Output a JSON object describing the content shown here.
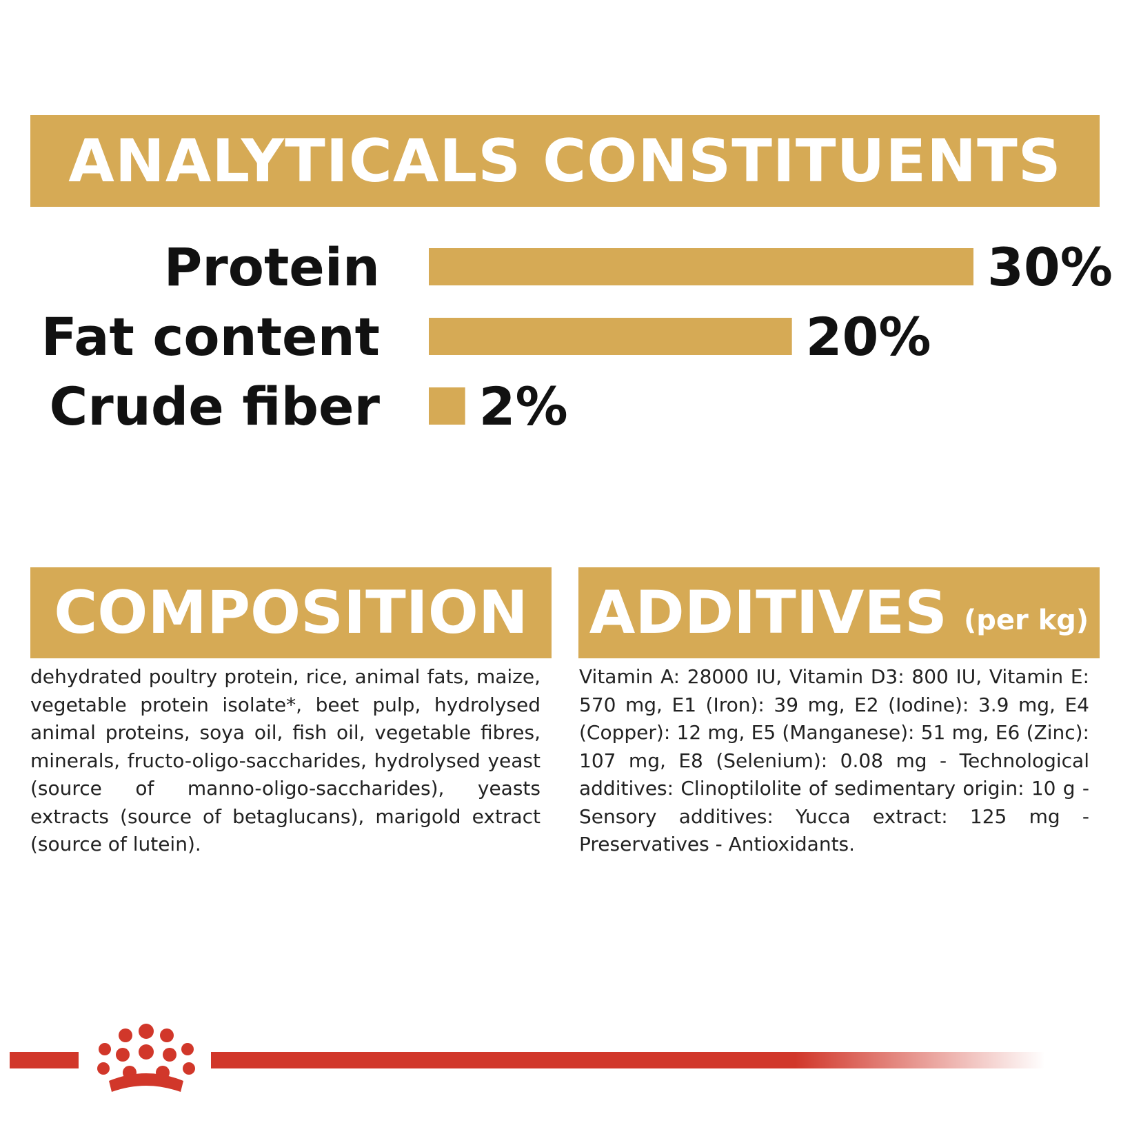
{
  "analyticals": {
    "title": "ANALYTICALS CONSTITUENTS"
  },
  "chart_data": {
    "type": "bar",
    "orientation": "horizontal",
    "categories": [
      "Protein",
      "Fat content",
      "Crude fiber"
    ],
    "values": [
      30,
      20,
      2
    ],
    "value_labels": [
      "30%",
      "20%",
      "2%"
    ],
    "unit": "%",
    "xlim": [
      0,
      30
    ],
    "grid": false,
    "legend": "none",
    "bar_color": "#d6aa55"
  },
  "composition": {
    "title": "COMPOSITION",
    "text": "dehydrated poultry protein, rice, animal fats, maize, vegetable protein isolate*, beet pulp, hydrolysed animal proteins, soya oil, fish oil, vegetable fibres, minerals, fructo-oligo-saccharides, hydrolysed yeast (source of manno-oligo-saccharides), yeasts extracts (source of betaglucans), marigold extract (source of lutein)."
  },
  "additives": {
    "title": "ADDITIVES",
    "subtitle": "(per kg)",
    "text": "Vitamin A: 28000 IU, Vitamin D3: 800 IU, Vitamin E: 570 mg, E1 (Iron): 39 mg, E2 (Iodine): 3.9 mg, E4 (Copper): 12 mg, E5 (Manganese): 51 mg, E6 (Zinc): 107 mg, E8 (Selenium): 0.08 mg - Technological additives: Clinoptilolite of sedimentary origin: 10 g - Sensory additives: Yucca extract: 125 mg - Preservatives - Antioxidants."
  },
  "colors": {
    "banner": "#d6aa55",
    "brand_red": "#d1372a",
    "text": "#111111"
  }
}
